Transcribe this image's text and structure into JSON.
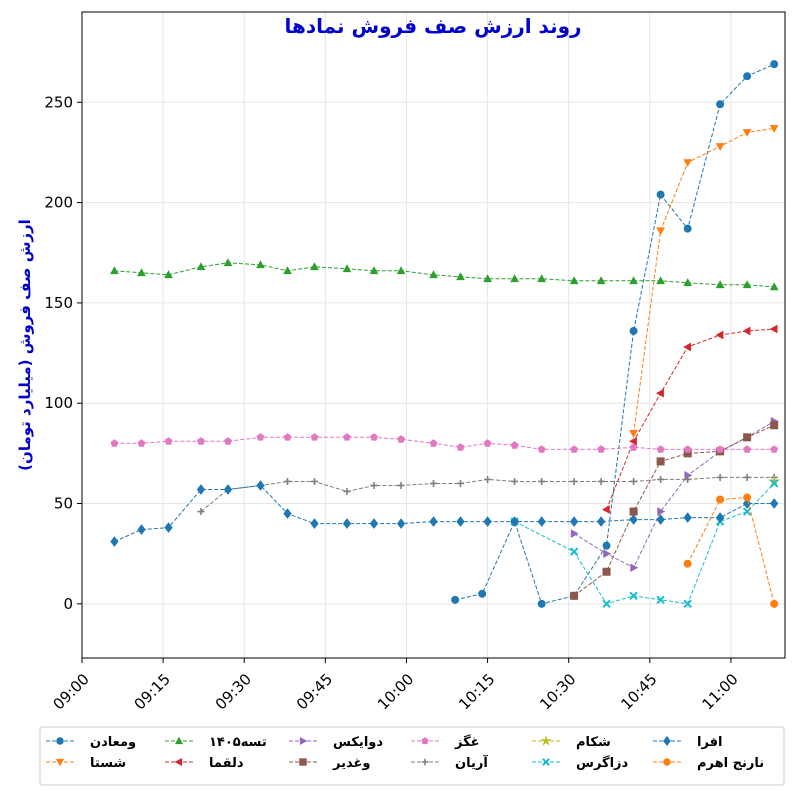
{
  "chart_data": {
    "type": "line",
    "title": "روند ارزش صف فروش نمادها",
    "ylabel": "ارزش صف فروش (میلیارد تومان)",
    "xlabel": "",
    "x_ticks": [
      "09:00",
      "09:15",
      "09:30",
      "09:45",
      "10:00",
      "10:15",
      "10:30",
      "10:45",
      "11:00"
    ],
    "y_ticks": [
      "0",
      "50",
      "100",
      "150",
      "200",
      "250"
    ],
    "xlim": [
      "09:00",
      "11:10"
    ],
    "ylim": [
      -27,
      295
    ],
    "grid": true,
    "legend_position": "bottom",
    "series": [
      {
        "name": "ومعادن",
        "color": "#1f77b4",
        "marker": "circle",
        "points": [
          [
            "10:09",
            2
          ],
          [
            "10:14",
            5
          ],
          [
            "10:20",
            41
          ],
          [
            "10:25",
            0
          ],
          [
            "10:31",
            4
          ],
          [
            "10:37",
            29
          ],
          [
            "10:42",
            136
          ],
          [
            "10:47",
            204
          ],
          [
            "10:52",
            187
          ],
          [
            "10:58",
            249
          ],
          [
            "11:03",
            263
          ],
          [
            "11:08",
            269
          ]
        ]
      },
      {
        "name": "شستا",
        "color": "#ff7f0e",
        "marker": "triangle-down",
        "points": [
          [
            "10:42",
            85
          ],
          [
            "10:47",
            186
          ],
          [
            "10:52",
            220
          ],
          [
            "10:58",
            228
          ],
          [
            "11:03",
            235
          ],
          [
            "11:08",
            237
          ]
        ]
      },
      {
        "name": "تسه۱۴۰۵",
        "color": "#2ca02c",
        "marker": "triangle-up",
        "points": [
          [
            "09:06",
            166
          ],
          [
            "09:11",
            165
          ],
          [
            "09:16",
            164
          ],
          [
            "09:22",
            168
          ],
          [
            "09:27",
            170
          ],
          [
            "09:33",
            169
          ],
          [
            "09:38",
            166
          ],
          [
            "09:43",
            168
          ],
          [
            "09:49",
            167
          ],
          [
            "09:54",
            166
          ],
          [
            "09:59",
            166
          ],
          [
            "10:05",
            164
          ],
          [
            "10:10",
            163
          ],
          [
            "10:15",
            162
          ],
          [
            "10:20",
            162
          ],
          [
            "10:25",
            162
          ],
          [
            "10:31",
            161
          ],
          [
            "10:36",
            161
          ],
          [
            "10:42",
            161
          ],
          [
            "10:47",
            161
          ],
          [
            "10:52",
            160
          ],
          [
            "10:58",
            159
          ],
          [
            "11:03",
            159
          ],
          [
            "11:08",
            158
          ]
        ]
      },
      {
        "name": "دلقما",
        "color": "#d62728",
        "marker": "triangle-left",
        "points": [
          [
            "10:37",
            47
          ],
          [
            "10:42",
            81
          ],
          [
            "10:47",
            105
          ],
          [
            "10:52",
            128
          ],
          [
            "10:58",
            134
          ],
          [
            "11:03",
            136
          ],
          [
            "11:08",
            137
          ]
        ]
      },
      {
        "name": "دوایکس",
        "color": "#9467bd",
        "marker": "triangle-right",
        "points": [
          [
            "10:31",
            35
          ],
          [
            "10:37",
            25
          ],
          [
            "10:42",
            18
          ],
          [
            "10:47",
            46
          ],
          [
            "10:52",
            64
          ],
          [
            "10:58",
            76
          ],
          [
            "11:03",
            83
          ],
          [
            "11:08",
            91
          ]
        ]
      },
      {
        "name": "وغدیر",
        "color": "#8c564b",
        "marker": "square",
        "points": [
          [
            "10:31",
            4
          ],
          [
            "10:37",
            16
          ],
          [
            "10:42",
            46
          ],
          [
            "10:47",
            71
          ],
          [
            "10:52",
            75
          ],
          [
            "10:58",
            76
          ],
          [
            "11:03",
            83
          ],
          [
            "11:08",
            89
          ]
        ]
      },
      {
        "name": "غگز",
        "color": "#e377c2",
        "marker": "pentagon",
        "points": [
          [
            "09:06",
            80
          ],
          [
            "09:11",
            80
          ],
          [
            "09:16",
            81
          ],
          [
            "09:22",
            81
          ],
          [
            "09:27",
            81
          ],
          [
            "09:33",
            83
          ],
          [
            "09:38",
            83
          ],
          [
            "09:43",
            83
          ],
          [
            "09:49",
            83
          ],
          [
            "09:54",
            83
          ],
          [
            "09:59",
            82
          ],
          [
            "10:05",
            80
          ],
          [
            "10:10",
            78
          ],
          [
            "10:15",
            80
          ],
          [
            "10:20",
            79
          ],
          [
            "10:25",
            77
          ],
          [
            "10:31",
            77
          ],
          [
            "10:36",
            77
          ],
          [
            "10:42",
            78
          ],
          [
            "10:47",
            77
          ],
          [
            "10:52",
            77
          ],
          [
            "10:58",
            77
          ],
          [
            "11:03",
            77
          ],
          [
            "11:08",
            77
          ]
        ]
      },
      {
        "name": "آریان",
        "color": "#7f7f7f",
        "marker": "plus",
        "points": [
          [
            "09:22",
            46
          ],
          [
            "09:27",
            57
          ],
          [
            "09:33",
            59
          ],
          [
            "09:38",
            61
          ],
          [
            "09:43",
            61
          ],
          [
            "09:49",
            56
          ],
          [
            "09:54",
            59
          ],
          [
            "09:59",
            59
          ],
          [
            "10:05",
            60
          ],
          [
            "10:10",
            60
          ],
          [
            "10:15",
            62
          ],
          [
            "10:20",
            61
          ],
          [
            "10:25",
            61
          ],
          [
            "10:31",
            61
          ],
          [
            "10:36",
            61
          ],
          [
            "10:42",
            61
          ],
          [
            "10:47",
            62
          ],
          [
            "10:52",
            62
          ],
          [
            "10:58",
            63
          ],
          [
            "11:03",
            63
          ],
          [
            "11:08",
            63
          ]
        ]
      },
      {
        "name": "شکام",
        "color": "#bcbd22",
        "marker": "star",
        "points": [
          [
            "11:08",
            61
          ]
        ]
      },
      {
        "name": "دزاگرس",
        "color": "#17becf",
        "marker": "x",
        "points": [
          [
            "10:20",
            41
          ],
          [
            "10:31",
            26
          ],
          [
            "10:37",
            0
          ],
          [
            "10:42",
            4
          ],
          [
            "10:47",
            2
          ],
          [
            "10:52",
            0
          ],
          [
            "10:58",
            41
          ],
          [
            "11:03",
            46
          ],
          [
            "11:08",
            60
          ]
        ]
      },
      {
        "name": "افرا",
        "color": "#1f77b4",
        "marker": "diamond",
        "points": [
          [
            "09:06",
            31
          ],
          [
            "09:11",
            37
          ],
          [
            "09:16",
            38
          ],
          [
            "09:22",
            57
          ],
          [
            "09:27",
            57
          ],
          [
            "09:33",
            59
          ],
          [
            "09:38",
            45
          ],
          [
            "09:43",
            40
          ],
          [
            "09:49",
            40
          ],
          [
            "09:54",
            40
          ],
          [
            "09:59",
            40
          ],
          [
            "10:05",
            41
          ],
          [
            "10:10",
            41
          ],
          [
            "10:15",
            41
          ],
          [
            "10:20",
            41
          ],
          [
            "10:25",
            41
          ],
          [
            "10:31",
            41
          ],
          [
            "10:36",
            41
          ],
          [
            "10:42",
            42
          ],
          [
            "10:47",
            42
          ],
          [
            "10:52",
            43
          ],
          [
            "10:58",
            43
          ],
          [
            "11:03",
            50
          ],
          [
            "11:08",
            50
          ]
        ]
      },
      {
        "name": "نارنج اهرم",
        "color": "#ff7f0e",
        "marker": "circle",
        "points": [
          [
            "10:52",
            20
          ],
          [
            "10:58",
            52
          ],
          [
            "11:03",
            53
          ],
          [
            "11:08",
            0
          ]
        ]
      }
    ]
  }
}
